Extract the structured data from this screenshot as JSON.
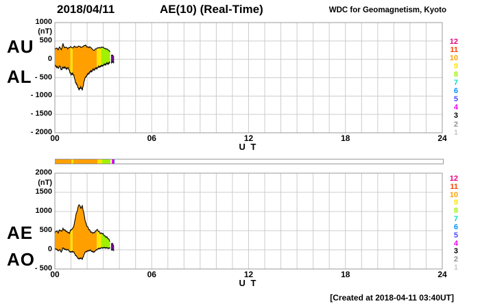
{
  "header": {
    "date": "2018/04/11",
    "title": "AE(10) (Real-Time)",
    "credit": "WDC for Geomagnetism, Kyoto"
  },
  "footer": {
    "created": "[Created at 2018-04-11 03:40UT]"
  },
  "axes": {
    "x_ticks": [
      "00",
      "06",
      "12",
      "18",
      "24"
    ],
    "x_hours": [
      0,
      6,
      12,
      18,
      24
    ],
    "x_label": "U T",
    "unit": "(nT)"
  },
  "legend": {
    "values": [
      12,
      11,
      10,
      9,
      8,
      7,
      6,
      5,
      4,
      3,
      2,
      1
    ]
  },
  "station_colors": {
    "12": "#E6007E",
    "11": "#FF4000",
    "10": "#FFA000",
    "9": "#FFE400",
    "8": "#A0F000",
    "7": "#00E0C8",
    "6": "#0090FF",
    "5": "#4848FF",
    "4": "#EE00EE",
    "3": "#000000",
    "2": "#909090",
    "1": "#C8C8C8"
  },
  "grid_color": "#CCCCCC",
  "frame_color": "#999999",
  "chart_data": [
    {
      "type": "area",
      "panel": "top",
      "title": "AU / AL auroral electrojet indices",
      "xlabel": "U T",
      "ylabel": "(nT)",
      "xlim": [
        0,
        24
      ],
      "ylim": [
        -2000,
        1000
      ],
      "yticks": [
        1000,
        500,
        0,
        -500,
        -1000,
        -1500,
        -2000
      ],
      "x": [
        0,
        0.1,
        0.2,
        0.3,
        0.4,
        0.5,
        0.6,
        0.7,
        0.8,
        0.9,
        1,
        1.1,
        1.2,
        1.3,
        1.4,
        1.5,
        1.6,
        1.7,
        1.8,
        1.9,
        2,
        2.1,
        2.2,
        2.3,
        2.4,
        2.5,
        2.6,
        2.7,
        2.8,
        2.9,
        3,
        3.1,
        3.2,
        3.3,
        3.4,
        3.5,
        3.6,
        3.65
      ],
      "series": [
        {
          "name": "AU",
          "values": [
            260,
            310,
            270,
            340,
            250,
            430,
            310,
            330,
            300,
            320,
            340,
            310,
            350,
            330,
            340,
            360,
            330,
            340,
            360,
            390,
            340,
            320,
            340,
            290,
            230,
            280,
            300,
            310,
            320,
            330,
            320,
            300,
            280,
            255,
            230,
            120,
            100,
            95
          ]
        },
        {
          "name": "AL",
          "values": [
            -150,
            -200,
            -240,
            -180,
            -280,
            -230,
            -210,
            -260,
            -230,
            -300,
            -420,
            -380,
            -480,
            -650,
            -720,
            -830,
            -750,
            -840,
            -620,
            -480,
            -430,
            -380,
            -340,
            -310,
            -280,
            -260,
            -240,
            -210,
            -195,
            -180,
            -160,
            -140,
            -125,
            -110,
            -100,
            -90,
            -80,
            -75
          ]
        }
      ],
      "segments": [
        {
          "from": 0,
          "to": 0.97,
          "stations": 10
        },
        {
          "from": 0.97,
          "to": 1.1,
          "stations": 9
        },
        {
          "from": 1.1,
          "to": 2.6,
          "stations": 10
        },
        {
          "from": 2.6,
          "to": 2.87,
          "stations": 9
        },
        {
          "from": 2.87,
          "to": 3.42,
          "stations": 8
        },
        {
          "from": 3.5,
          "to": 3.58,
          "stations": 4
        },
        {
          "from": 3.58,
          "to": 3.65,
          "stations": 5
        }
      ],
      "outline_end": 3.42
    },
    {
      "type": "area",
      "panel": "bottom",
      "title": "AE / AO auroral electrojet indices",
      "xlabel": "U T",
      "ylabel": "(nT)",
      "xlim": [
        0,
        24
      ],
      "ylim": [
        -500,
        2000
      ],
      "yticks": [
        2000,
        1500,
        1000,
        500,
        0,
        -500
      ],
      "x": [
        0,
        0.1,
        0.2,
        0.3,
        0.4,
        0.5,
        0.6,
        0.7,
        0.8,
        0.9,
        1,
        1.1,
        1.2,
        1.3,
        1.4,
        1.5,
        1.6,
        1.7,
        1.8,
        1.9,
        2,
        2.1,
        2.2,
        2.3,
        2.4,
        2.5,
        2.6,
        2.7,
        2.8,
        2.9,
        3,
        3.1,
        3.2,
        3.3,
        3.4,
        3.5,
        3.6,
        3.65
      ],
      "series": [
        {
          "name": "AE",
          "values": [
            430,
            490,
            460,
            520,
            470,
            560,
            510,
            480,
            470,
            430,
            520,
            560,
            650,
            900,
            1060,
            1180,
            1090,
            1150,
            930,
            720,
            620,
            530,
            490,
            450,
            430,
            480,
            530,
            480,
            450,
            430,
            400,
            365,
            330,
            290,
            250,
            170,
            140,
            130
          ]
        },
        {
          "name": "AO",
          "values": [
            30,
            20,
            -30,
            10,
            -60,
            50,
            20,
            0,
            10,
            -40,
            -60,
            -40,
            -80,
            -150,
            -200,
            -240,
            -210,
            -245,
            -130,
            -50,
            -40,
            -20,
            -10,
            -40,
            -60,
            -30,
            10,
            30,
            40,
            50,
            55,
            55,
            50,
            45,
            40,
            0,
            -10,
            -10
          ]
        }
      ],
      "segments": [
        {
          "from": 0,
          "to": 0.97,
          "stations": 10
        },
        {
          "from": 0.97,
          "to": 1.1,
          "stations": 9
        },
        {
          "from": 1.1,
          "to": 2.6,
          "stations": 10
        },
        {
          "from": 2.6,
          "to": 2.87,
          "stations": 9
        },
        {
          "from": 2.87,
          "to": 3.42,
          "stations": 8
        },
        {
          "from": 3.5,
          "to": 3.58,
          "stations": 4
        },
        {
          "from": 3.58,
          "to": 3.65,
          "stations": 5
        }
      ],
      "outline_end": 3.42
    }
  ],
  "station_bar": {
    "xlim": [
      0,
      24
    ],
    "segments": [
      {
        "from": 0,
        "to": 0.97,
        "stations": 10
      },
      {
        "from": 0.97,
        "to": 1.1,
        "stations": 9
      },
      {
        "from": 1.1,
        "to": 2.6,
        "stations": 10
      },
      {
        "from": 2.6,
        "to": 2.87,
        "stations": 9
      },
      {
        "from": 2.87,
        "to": 3.42,
        "stations": 8
      },
      {
        "from": 3.5,
        "to": 3.58,
        "stations": 4
      },
      {
        "from": 3.58,
        "to": 3.65,
        "stations": 5
      }
    ]
  }
}
